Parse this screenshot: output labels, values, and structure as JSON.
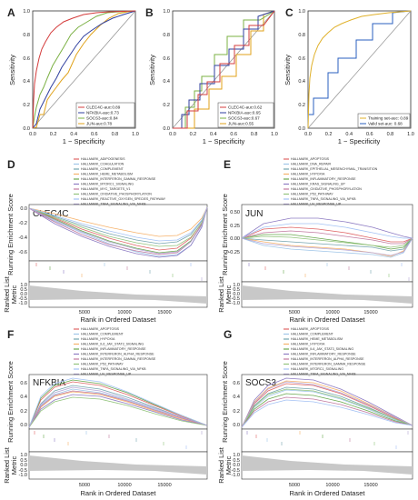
{
  "colors": {
    "roc": {
      "CLEC4C": "#d43c3c",
      "NFKBIA": "#2f3f9f",
      "SOCS3": "#7bb043",
      "JUN": "#e0a21a",
      "Training": "#e0b12b",
      "Valid": "#2a5fbf"
    },
    "gsea_palette": [
      "#e06666",
      "#9fc5e8",
      "#76a5af",
      "#f6b26b",
      "#6aa84f",
      "#8e7cc3",
      "#c27ba0",
      "#93c47d",
      "#a4c2f4",
      "#b4a7d6"
    ]
  },
  "roc_common": {
    "xlabel": "1 − Specificity",
    "ylabel": "Sensitivity",
    "ticks": [
      "0.0",
      "0.2",
      "0.4",
      "0.6",
      "0.8",
      "1.0"
    ]
  },
  "panels": {
    "A": {
      "letter": "A",
      "legend": [
        "CLEC4C-auc:0.89",
        "NFKBIA-auc:0.73",
        "SOCS3-auc:0.84",
        "JUN-auc:0.78"
      ]
    },
    "B": {
      "letter": "B",
      "legend": [
        "CLEC4C-auc:0.62",
        "NFKBIA-auc:0.65",
        "SOCS3-auc:0.67",
        "JUN-auc:0.55"
      ]
    },
    "C": {
      "letter": "C",
      "legend": [
        "Training set-auc: 0.89",
        "Valid set-auc: 0.68"
      ]
    },
    "D": {
      "letter": "D",
      "gene": "CLEC4C",
      "legend": [
        "HALLMARK_ADIPOGENESIS",
        "HALLMARK_COAGULATION",
        "HALLMARK_COMPLEMENT",
        "HALLMARK_HEME_METABOLISM",
        "HALLMARK_INTERFERON_GAMMA_RESPONSE",
        "HALLMARK_MTORC1_SIGNALING",
        "HALLMARK_MYC_TARGETS_V1",
        "HALLMARK_OXIDATIVE_PHOSPHORYLATION",
        "HALLMARK_REACTIVE_OXYGEN_SPECIES_PATHWAY",
        "HALLMARK_TNFA_SIGNALING_VIA_NFKB"
      ],
      "yticks": [
        "0.0",
        "-0.2",
        "-0.4",
        "-0.6"
      ]
    },
    "E": {
      "letter": "E",
      "gene": "JUN",
      "legend": [
        "HALLMARK_APOPTOSIS",
        "HALLMARK_DNA_REPAIR",
        "HALLMARK_EPITHELIAL_MESENCHYMAL_TRANSITION",
        "HALLMARK_HYPOXIA",
        "HALLMARK_INFLAMMATORY_RESPONSE",
        "HALLMARK_KRAS_SIGNALING_UP",
        "HALLMARK_OXIDATIVE_PHOSPHORYLATION",
        "HALLMARK_P53_PATHWAY",
        "HALLMARK_TNFA_SIGNALING_VIA_NFKB",
        "HALLMARK_UV_RESPONSE_UP"
      ],
      "yticks": [
        "0.50",
        "0.25",
        "0.00",
        "-0.25"
      ]
    },
    "F": {
      "letter": "F",
      "gene": "NFKBIA",
      "legend": [
        "HALLMARK_APOPTOSIS",
        "HALLMARK_COMPLEMENT",
        "HALLMARK_HYPOXIA",
        "HALLMARK_IL6_JAK_STAT3_SIGNALING",
        "HALLMARK_INFLAMMATORY_RESPONSE",
        "HALLMARK_INTERFERON_ALPHA_RESPONSE",
        "HALLMARK_INTERFERON_GAMMA_RESPONSE",
        "HALLMARK_P53_PATHWAY",
        "HALLMARK_TNFA_SIGNALING_VIA_NFKB",
        "HALLMARK_UV_RESPONSE_UP"
      ],
      "yticks": [
        "0.6",
        "0.4",
        "0.2",
        "0.0"
      ]
    },
    "G": {
      "letter": "G",
      "gene": "SOCS3",
      "legend": [
        "HALLMARK_APOPTOSIS",
        "HALLMARK_COMPLEMENT",
        "HALLMARK_HEME_METABOLISM",
        "HALLMARK_HYPOXIA",
        "HALLMARK_IL6_JAK_STAT3_SIGNALING",
        "HALLMARK_INFLAMMATORY_RESPONSE",
        "HALLMARK_INTERFERON_ALPHA_RESPONSE",
        "HALLMARK_INTERFERON_GAMMA_RESPONSE",
        "HALLMARK_MTORC1_SIGNALING",
        "HALLMARK_TNFA_SIGNALING_VIA_NFKB"
      ],
      "yticks": [
        "0.6",
        "0.4",
        "0.2",
        "0.0"
      ]
    }
  },
  "gsea_common": {
    "ylabel_top": "Running Enrichment Score",
    "ylabel_bottom_1": "Ranked List",
    "ylabel_bottom_2": "Metric",
    "xlabel": "Rank in Ordered Dataset",
    "xticks": [
      "5000",
      "10000",
      "15000"
    ],
    "metric_ticks": [
      "1.0",
      "0.5",
      "0.0",
      "-0.5",
      "-1.0"
    ]
  }
}
